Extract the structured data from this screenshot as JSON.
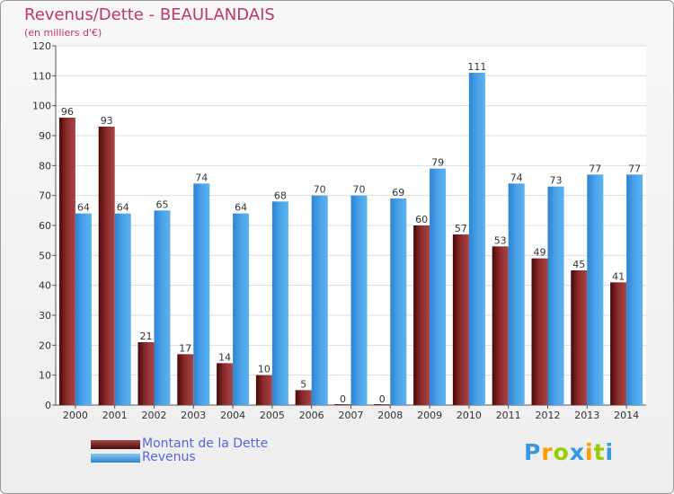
{
  "header": {
    "title": "Revenus/Dette - BEAULANDAIS",
    "subtitle": "(en milliers d'€)"
  },
  "colors": {
    "dette": "#7a1c1c",
    "revenus": "#4aa3e8",
    "text": "#c0395a",
    "legend_text": "#5566dd"
  },
  "chart_data": {
    "type": "bar",
    "title": "Revenus/Dette - BEAULANDAIS",
    "ylabel": "(en milliers d'€)",
    "categories": [
      "2000",
      "2001",
      "2002",
      "2003",
      "2004",
      "2005",
      "2006",
      "2007",
      "2008",
      "2009",
      "2010",
      "2011",
      "2012",
      "2013",
      "2014"
    ],
    "series": [
      {
        "name": "Montant de la Dette",
        "values": [
          96,
          93,
          21,
          17,
          14,
          10,
          5,
          0,
          0,
          60,
          57,
          53,
          49,
          45,
          41
        ]
      },
      {
        "name": "Revenus",
        "values": [
          64,
          64,
          65,
          74,
          64,
          68,
          70,
          70,
          69,
          79,
          111,
          74,
          73,
          77,
          77
        ]
      }
    ],
    "ylim": [
      0,
      120
    ],
    "yticks": [
      0,
      10,
      20,
      30,
      40,
      50,
      60,
      70,
      80,
      90,
      100,
      110,
      120
    ],
    "grid": true,
    "legend": "bottom-left"
  },
  "legend": {
    "items": [
      {
        "label": "Montant de la Dette"
      },
      {
        "label": "Revenus"
      }
    ]
  },
  "logo": {
    "letters": [
      "P",
      "r",
      "o",
      "x",
      "i",
      "t",
      "i"
    ],
    "colors": [
      "#3399dd",
      "#ff9900",
      "#99cc00",
      "#3399dd",
      "#ff9900",
      "#99cc00",
      "#3399dd"
    ]
  }
}
